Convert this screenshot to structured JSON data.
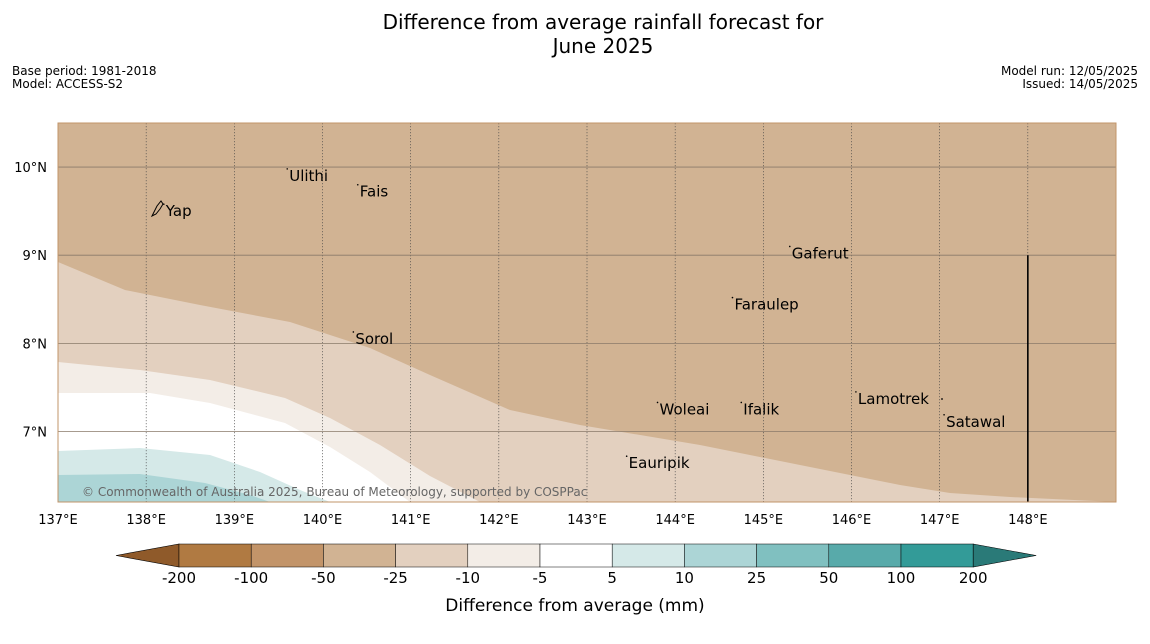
{
  "header": {
    "title_line1": "Difference from average rainfall forecast for",
    "title_line2": "June 2025",
    "base_period": "Base period: 1981-2018",
    "model": "Model: ACCESS-S2",
    "model_run": "Model run: 12/05/2025",
    "issued": "Issued: 14/05/2025"
  },
  "map": {
    "lon_range": [
      137,
      149
    ],
    "lat_range": [
      6.2,
      10.5
    ],
    "lon_ticks": [
      {
        "value": 137,
        "label": "137°E"
      },
      {
        "value": 138,
        "label": "138°E"
      },
      {
        "value": 139,
        "label": "139°E"
      },
      {
        "value": 140,
        "label": "140°E"
      },
      {
        "value": 141,
        "label": "141°E"
      },
      {
        "value": 142,
        "label": "142°E"
      },
      {
        "value": 143,
        "label": "143°E"
      },
      {
        "value": 144,
        "label": "144°E"
      },
      {
        "value": 145,
        "label": "145°E"
      },
      {
        "value": 146,
        "label": "146°E"
      },
      {
        "value": 147,
        "label": "147°E"
      },
      {
        "value": 148,
        "label": "148°E"
      }
    ],
    "lat_ticks": [
      {
        "value": 10,
        "label": "10°N"
      },
      {
        "value": 9,
        "label": "9°N"
      },
      {
        "value": 8,
        "label": "8°N"
      },
      {
        "value": 7,
        "label": "7°N"
      }
    ],
    "places": [
      {
        "name": "Yap",
        "lon": 138.2,
        "lat": 9.5
      },
      {
        "name": "Ulithi",
        "lon": 139.6,
        "lat": 9.9
      },
      {
        "name": "Fais",
        "lon": 140.4,
        "lat": 9.72
      },
      {
        "name": "Gaferut",
        "lon": 145.3,
        "lat": 9.02
      },
      {
        "name": "Faraulep",
        "lon": 144.65,
        "lat": 8.44
      },
      {
        "name": "Sorol",
        "lon": 140.35,
        "lat": 8.05
      },
      {
        "name": "Lamotrek",
        "lon": 146.05,
        "lat": 7.37
      },
      {
        "name": "Woleai",
        "lon": 143.8,
        "lat": 7.25
      },
      {
        "name": "Ifalik",
        "lon": 144.75,
        "lat": 7.25
      },
      {
        "name": "Satawal",
        "lon": 147.05,
        "lat": 7.11
      },
      {
        "name": "Eauripik",
        "lon": 143.45,
        "lat": 6.64
      }
    ],
    "border_line": {
      "lon": 148,
      "lat_from": 9.0,
      "lat_to": 6.2
    },
    "copyright": "© Commonwealth of Australia 2025, Bureau of Meteorology, supported by COSPPac"
  },
  "colors": {
    "bin_lt_neg200": "#8f5a2a",
    "bin_neg200_neg100": "#b07a42",
    "bin_neg100_neg50": "#c29469",
    "bin_neg50_neg25": "#d1b393",
    "bin_neg25_neg10": "#e3d0bf",
    "bin_neg10_neg5": "#f3ede7",
    "bin_neg5_5": "#ffffff",
    "bin_5_10": "#d5e9e8",
    "bin_10_25": "#acd5d6",
    "bin_25_50": "#80c0c0",
    "bin_50_100": "#58aaaa",
    "bin_100_200": "#339b98",
    "bin_gt200": "#2a7a78"
  },
  "colorbar": {
    "tick_labels": [
      "-200",
      "-100",
      "-50",
      "-25",
      "-10",
      "-5",
      "5",
      "10",
      "25",
      "50",
      "100",
      "200"
    ],
    "label": "Difference from average (mm)"
  }
}
